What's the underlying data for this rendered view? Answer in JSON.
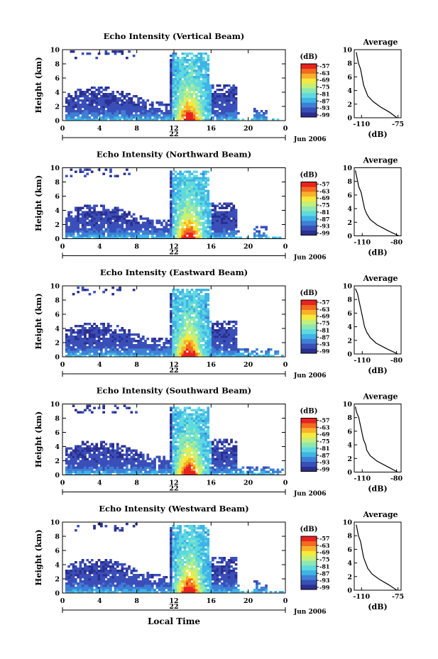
{
  "figure": {
    "bottom_label": "Local Time"
  },
  "chart_data": {
    "type": "heatmap",
    "colorbar": {
      "unit": "(dB)",
      "ticks": [
        "-57",
        "-63",
        "-69",
        "-75",
        "-81",
        "-87",
        "-93",
        "-99"
      ],
      "range_db": [
        -99,
        -57
      ],
      "colors": [
        "#2b2f8f",
        "#3a4fb8",
        "#3f7fd6",
        "#3fb4e6",
        "#5fd9e0",
        "#8de8b0",
        "#c6ef7a",
        "#f5ea3c",
        "#f9b02c",
        "#f26b1f",
        "#e8221e"
      ]
    },
    "panels": [
      {
        "title": "Echo Intensity (Vertical Beam)",
        "ylabel": "Height (km)",
        "xticks": [
          "0",
          "4",
          "8",
          "12",
          "16",
          "20",
          "0"
        ],
        "yticks": [
          "0",
          "2",
          "4",
          "6",
          "8",
          "10"
        ],
        "xlim_hours": [
          0,
          24
        ],
        "ylim_km": [
          0,
          10
        ],
        "date_label": "22",
        "month_label": "Jun 2006",
        "avg_title": "Average",
        "avg_xlabel": "(dB)",
        "avg_xticks": [
          "-110",
          "-75"
        ],
        "avg_yticks": [
          "0",
          "2",
          "4",
          "6",
          "8",
          "10"
        ],
        "avg_xlim": [
          -117,
          -72
        ],
        "avg_profile_db": [
          -76,
          -83,
          -92,
          -99,
          -104,
          -106,
          -108,
          -109,
          -110,
          -111,
          -113,
          -114,
          -115
        ]
      },
      {
        "title": "Echo Intensity (Northward Beam)",
        "ylabel": "Height (km)",
        "xticks": [
          "0",
          "4",
          "8",
          "12",
          "16",
          "20",
          "0"
        ],
        "yticks": [
          "0",
          "2",
          "4",
          "6",
          "8",
          "10"
        ],
        "xlim_hours": [
          0,
          24
        ],
        "ylim_km": [
          0,
          10
        ],
        "date_label": "22",
        "month_label": "Jun 2006",
        "avg_title": "Average",
        "avg_xlabel": "(dB)",
        "avg_xticks": [
          "-110",
          "-80"
        ],
        "avg_yticks": [
          "0",
          "2",
          "4",
          "6",
          "8",
          "10"
        ],
        "avg_xlim": [
          -117,
          -76
        ],
        "avg_profile_db": [
          -78,
          -88,
          -97,
          -103,
          -106,
          -108,
          -109,
          -110,
          -111,
          -113,
          -114,
          -115,
          -116
        ]
      },
      {
        "title": "Echo Intensity (Eastward Beam)",
        "ylabel": "Height (km)",
        "xticks": [
          "0",
          "4",
          "8",
          "12",
          "16",
          "20",
          "0"
        ],
        "yticks": [
          "0",
          "2",
          "4",
          "6",
          "8",
          "10"
        ],
        "xlim_hours": [
          0,
          24
        ],
        "ylim_km": [
          0,
          10
        ],
        "date_label": "22",
        "month_label": "Jun 2006",
        "avg_title": "Average",
        "avg_xlabel": "(dB)",
        "avg_xticks": [
          "-110",
          "-80"
        ],
        "avg_yticks": [
          "0",
          "2",
          "4",
          "6",
          "8",
          "10"
        ],
        "avg_xlim": [
          -117,
          -76
        ],
        "avg_profile_db": [
          -79,
          -89,
          -98,
          -103,
          -106,
          -108,
          -109,
          -110,
          -111,
          -112,
          -113,
          -114,
          -116
        ]
      },
      {
        "title": "Echo Intensity (Southward Beam)",
        "ylabel": "Height (km)",
        "xticks": [
          "0",
          "4",
          "8",
          "12",
          "16",
          "20",
          "0"
        ],
        "yticks": [
          "0",
          "2",
          "4",
          "6",
          "8",
          "10"
        ],
        "xlim_hours": [
          0,
          24
        ],
        "ylim_km": [
          0,
          10
        ],
        "date_label": "22",
        "month_label": "Jun 2006",
        "avg_title": "Average",
        "avg_xlabel": "(dB)",
        "avg_xticks": [
          "-110",
          "-80"
        ],
        "avg_yticks": [
          "0",
          "2",
          "4",
          "6",
          "8",
          "10"
        ],
        "avg_xlim": [
          -117,
          -76
        ],
        "avg_profile_db": [
          -79,
          -88,
          -97,
          -103,
          -106,
          -107,
          -109,
          -110,
          -111,
          -112,
          -113,
          -115,
          -116
        ]
      },
      {
        "title": "Echo Intensity (Westward Beam)",
        "ylabel": "Height (km)",
        "xticks": [
          "0",
          "4",
          "8",
          "12",
          "16",
          "20",
          "0"
        ],
        "yticks": [
          "0",
          "2",
          "4",
          "6",
          "8",
          "10"
        ],
        "xlim_hours": [
          0,
          24
        ],
        "ylim_km": [
          0,
          10
        ],
        "date_label": "22",
        "month_label": "Jun 2006",
        "avg_title": "Average",
        "avg_xlabel": "(dB)",
        "avg_xticks": [
          "-110",
          "-75"
        ],
        "avg_yticks": [
          "0",
          "2",
          "4",
          "6",
          "8",
          "10"
        ],
        "avg_xlim": [
          -117,
          -72
        ],
        "avg_profile_db": [
          -76,
          -84,
          -93,
          -100,
          -104,
          -106,
          -108,
          -109,
          -110,
          -111,
          -113,
          -114,
          -115
        ]
      }
    ]
  }
}
